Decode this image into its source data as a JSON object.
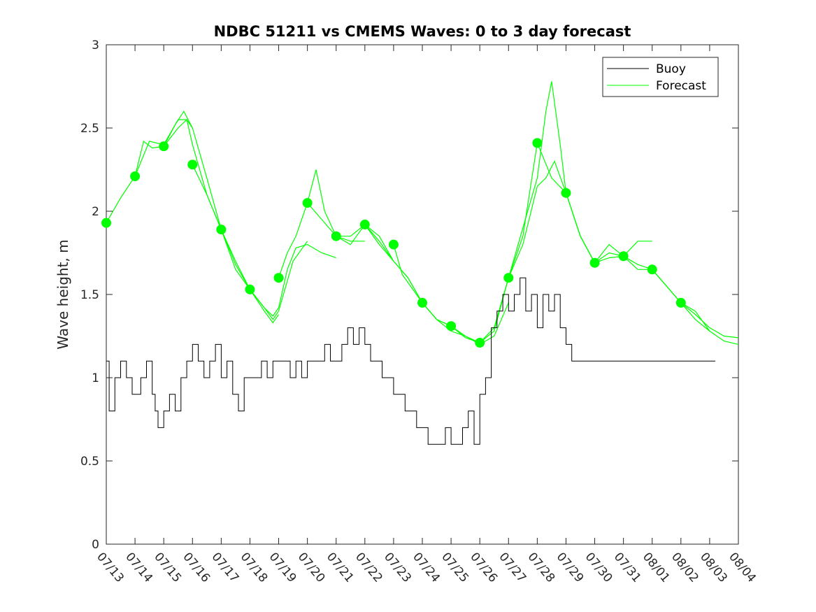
{
  "chart_data": {
    "type": "line",
    "title": "NDBC 51211 vs CMEMS Waves: 0 to 3 day forecast",
    "xlabel": "",
    "ylabel": "Wave height, m",
    "ylim": [
      0,
      3
    ],
    "yticks": [
      "0",
      "0.5",
      "1",
      "1.5",
      "2",
      "2.5",
      "3"
    ],
    "ytick_values": [
      0,
      0.5,
      1,
      1.5,
      2,
      2.5,
      3
    ],
    "xlim": [
      0,
      22
    ],
    "xtick_labels": [
      "07/13",
      "07/14",
      "07/15",
      "07/16",
      "07/17",
      "07/18",
      "07/19",
      "07/20",
      "07/21",
      "07/22",
      "07/23",
      "07/24",
      "07/25",
      "07/26",
      "07/27",
      "07/28",
      "07/29",
      "07/30",
      "07/31",
      "08/01",
      "08/02",
      "08/03",
      "08/04"
    ],
    "legend": {
      "placement": "top-right",
      "entries": [
        {
          "label": "Buoy",
          "color": "#000000"
        },
        {
          "label": "Forecast",
          "color": "#00ff00"
        }
      ]
    },
    "colors": {
      "buoy": "#000000",
      "forecast": "#00ff00",
      "axes": "#262626"
    },
    "buoy": {
      "name": "Buoy",
      "x": [
        0,
        0.1,
        0.3,
        0.5,
        0.7,
        0.9,
        1.0,
        1.2,
        1.4,
        1.6,
        1.7,
        1.8,
        2.0,
        2.2,
        2.4,
        2.6,
        2.8,
        3.0,
        3.2,
        3.4,
        3.6,
        3.8,
        4.0,
        4.2,
        4.4,
        4.6,
        4.8,
        5.0,
        5.2,
        5.4,
        5.6,
        5.8,
        6.0,
        6.2,
        6.4,
        6.6,
        6.8,
        7.0,
        7.2,
        7.4,
        7.6,
        7.8,
        8.0,
        8.2,
        8.4,
        8.6,
        8.8,
        9.0,
        9.2,
        9.4,
        9.6,
        9.8,
        10.0,
        10.2,
        10.4,
        10.6,
        10.8,
        11.0,
        11.2,
        11.4,
        11.6,
        11.8,
        12.0,
        12.2,
        12.4,
        12.6,
        12.8,
        13.0,
        13.2,
        13.4,
        13.6,
        13.8,
        14.0,
        14.2,
        14.4,
        14.6,
        14.8,
        15.0,
        15.2,
        15.4,
        15.6,
        15.8,
        16.0,
        16.2,
        16.4,
        16.6,
        16.8,
        17.0,
        17.2,
        17.4,
        17.6,
        17.8,
        18.0,
        18.2,
        18.4,
        18.6,
        18.8,
        19.0,
        19.2,
        19.4,
        19.6,
        19.8,
        20.0,
        20.2,
        20.4,
        20.6,
        20.8,
        21.0,
        21.2
      ],
      "values": [
        1.1,
        0.8,
        1.0,
        1.1,
        1.0,
        0.9,
        0.9,
        1.0,
        1.1,
        0.9,
        0.8,
        0.7,
        0.8,
        0.9,
        0.8,
        1.0,
        1.1,
        1.2,
        1.1,
        1.0,
        1.1,
        1.2,
        1.0,
        1.1,
        0.9,
        0.8,
        1.0,
        1.0,
        1.0,
        1.1,
        1.0,
        1.1,
        1.1,
        1.1,
        1.0,
        1.1,
        1.0,
        1.1,
        1.1,
        1.1,
        1.2,
        1.1,
        1.1,
        1.2,
        1.3,
        1.2,
        1.3,
        1.2,
        1.1,
        1.1,
        1.0,
        1.0,
        0.9,
        0.9,
        0.8,
        0.8,
        0.7,
        0.7,
        0.6,
        0.6,
        0.6,
        0.7,
        0.6,
        0.6,
        0.7,
        0.8,
        0.6,
        0.9,
        1.0,
        1.3,
        1.4,
        1.5,
        1.4,
        1.5,
        1.6,
        1.4,
        1.5,
        1.3,
        1.5,
        1.4,
        1.5,
        1.3,
        1.2,
        1.1,
        1.1,
        1.1,
        1.1,
        1.1,
        1.1,
        1.1,
        1.1,
        1.1,
        1.1,
        1.1,
        1.1,
        1.1,
        1.1,
        1.1,
        1.1,
        1.1,
        1.1,
        1.1,
        1.1,
        1.1,
        1.1,
        1.1,
        1.1,
        1.1,
        1.1
      ]
    },
    "forecast": {
      "name": "Forecast",
      "marker_x": [
        0,
        1,
        2,
        3,
        4,
        5,
        6,
        7,
        8,
        9,
        10,
        11,
        12,
        13,
        14,
        15,
        16,
        17,
        18,
        19,
        20
      ],
      "marker_values": [
        1.93,
        2.21,
        2.39,
        2.28,
        1.89,
        1.53,
        1.6,
        2.05,
        1.85,
        1.92,
        1.8,
        1.45,
        1.31,
        1.21,
        1.6,
        2.41,
        2.11,
        1.69,
        1.73,
        1.65,
        1.45
      ],
      "runs": [
        {
          "x": [
            0,
            0.5,
            1.0,
            1.5,
            2.0,
            2.5,
            2.8,
            3.0
          ],
          "values": [
            1.93,
            2.08,
            2.21,
            2.42,
            2.4,
            2.55,
            2.55,
            2.5
          ]
        },
        {
          "x": [
            1.0,
            1.3,
            1.6,
            2.0,
            2.4,
            2.7,
            3.0,
            3.5,
            4.0
          ],
          "values": [
            2.21,
            2.42,
            2.38,
            2.39,
            2.52,
            2.6,
            2.5,
            2.2,
            1.89
          ]
        },
        {
          "x": [
            2.0,
            2.5,
            2.8,
            3.0,
            3.5,
            4.0,
            4.5,
            5.0
          ],
          "values": [
            2.39,
            2.5,
            2.55,
            2.4,
            2.1,
            1.89,
            1.65,
            1.53
          ]
        },
        {
          "x": [
            3.0,
            3.5,
            4.0,
            4.5,
            5.0,
            5.5,
            5.8,
            6.0
          ],
          "values": [
            2.28,
            2.1,
            1.89,
            1.7,
            1.53,
            1.4,
            1.33,
            1.38
          ]
        },
        {
          "x": [
            4.0,
            4.5,
            5.0,
            5.5,
            5.8,
            6.0,
            6.5,
            7.0
          ],
          "values": [
            1.89,
            1.68,
            1.53,
            1.42,
            1.35,
            1.4,
            1.7,
            1.82
          ]
        },
        {
          "x": [
            5.0,
            5.5,
            5.8,
            6.0,
            6.3,
            6.6,
            7.0,
            7.5,
            8.0
          ],
          "values": [
            1.53,
            1.42,
            1.37,
            1.42,
            1.65,
            1.78,
            1.8,
            1.75,
            1.72
          ]
        },
        {
          "x": [
            6.0,
            6.3,
            6.6,
            7.0,
            7.3,
            7.6,
            8.0,
            8.5,
            9.0
          ],
          "values": [
            1.6,
            1.75,
            1.85,
            2.05,
            2.25,
            2.0,
            1.85,
            1.82,
            1.82
          ]
        },
        {
          "x": [
            7.0,
            7.5,
            8.0,
            8.5,
            9.0,
            9.5,
            10.0
          ],
          "values": [
            2.05,
            1.95,
            1.85,
            1.85,
            1.92,
            1.8,
            1.7
          ]
        },
        {
          "x": [
            8.0,
            8.5,
            9.0,
            9.5,
            10.0,
            10.5,
            11.0
          ],
          "values": [
            1.85,
            1.8,
            1.92,
            1.85,
            1.7,
            1.6,
            1.45
          ]
        },
        {
          "x": [
            9.0,
            9.5,
            10.0,
            10.5,
            11.0,
            11.5,
            12.0
          ],
          "values": [
            1.92,
            1.82,
            1.7,
            1.6,
            1.45,
            1.35,
            1.31
          ]
        },
        {
          "x": [
            10.0,
            10.3,
            11.0,
            11.5,
            12.0,
            12.5,
            13.0
          ],
          "values": [
            1.8,
            1.62,
            1.45,
            1.35,
            1.28,
            1.25,
            1.21
          ]
        },
        {
          "x": [
            11.0,
            11.5,
            12.0,
            12.5,
            13.0,
            13.5,
            14.0
          ],
          "values": [
            1.45,
            1.35,
            1.31,
            1.25,
            1.2,
            1.25,
            1.45
          ]
        },
        {
          "x": [
            12.0,
            12.5,
            13.0,
            13.5,
            14.0,
            14.5,
            15.0
          ],
          "values": [
            1.31,
            1.24,
            1.21,
            1.28,
            1.6,
            1.85,
            2.41
          ]
        },
        {
          "x": [
            13.0,
            13.5,
            14.0,
            14.5,
            15.0,
            15.3,
            15.5,
            15.8,
            16.0
          ],
          "values": [
            1.21,
            1.3,
            1.6,
            1.9,
            2.2,
            2.6,
            2.78,
            2.4,
            2.11
          ]
        },
        {
          "x": [
            14.0,
            14.5,
            15.0,
            15.3,
            15.6,
            16.0,
            16.5,
            17.0
          ],
          "values": [
            1.6,
            1.8,
            2.15,
            2.2,
            2.3,
            2.11,
            1.85,
            1.69
          ]
        },
        {
          "x": [
            15.0,
            15.5,
            16.0,
            16.5,
            17.0,
            17.5,
            18.0
          ],
          "values": [
            2.41,
            2.2,
            2.11,
            1.85,
            1.69,
            1.8,
            1.73
          ]
        },
        {
          "x": [
            16.0,
            16.5,
            17.0,
            17.5,
            18.0,
            18.5,
            19.0
          ],
          "values": [
            2.11,
            1.85,
            1.69,
            1.75,
            1.73,
            1.82,
            1.82
          ]
        },
        {
          "x": [
            17.0,
            17.5,
            18.0,
            18.5,
            19.0,
            19.5,
            20.0
          ],
          "values": [
            1.69,
            1.72,
            1.73,
            1.65,
            1.65,
            1.55,
            1.45
          ]
        },
        {
          "x": [
            18.0,
            18.5,
            19.0,
            19.5,
            20.0,
            20.5,
            21.0
          ],
          "values": [
            1.73,
            1.68,
            1.65,
            1.55,
            1.45,
            1.35,
            1.28
          ]
        },
        {
          "x": [
            19.0,
            19.5,
            20.0,
            20.5,
            21.0,
            21.5,
            22.0
          ],
          "values": [
            1.65,
            1.55,
            1.45,
            1.4,
            1.28,
            1.22,
            1.2
          ]
        },
        {
          "x": [
            20.0,
            20.5,
            21.0,
            21.5,
            22.0
          ],
          "values": [
            1.45,
            1.38,
            1.3,
            1.25,
            1.24
          ]
        }
      ]
    }
  }
}
